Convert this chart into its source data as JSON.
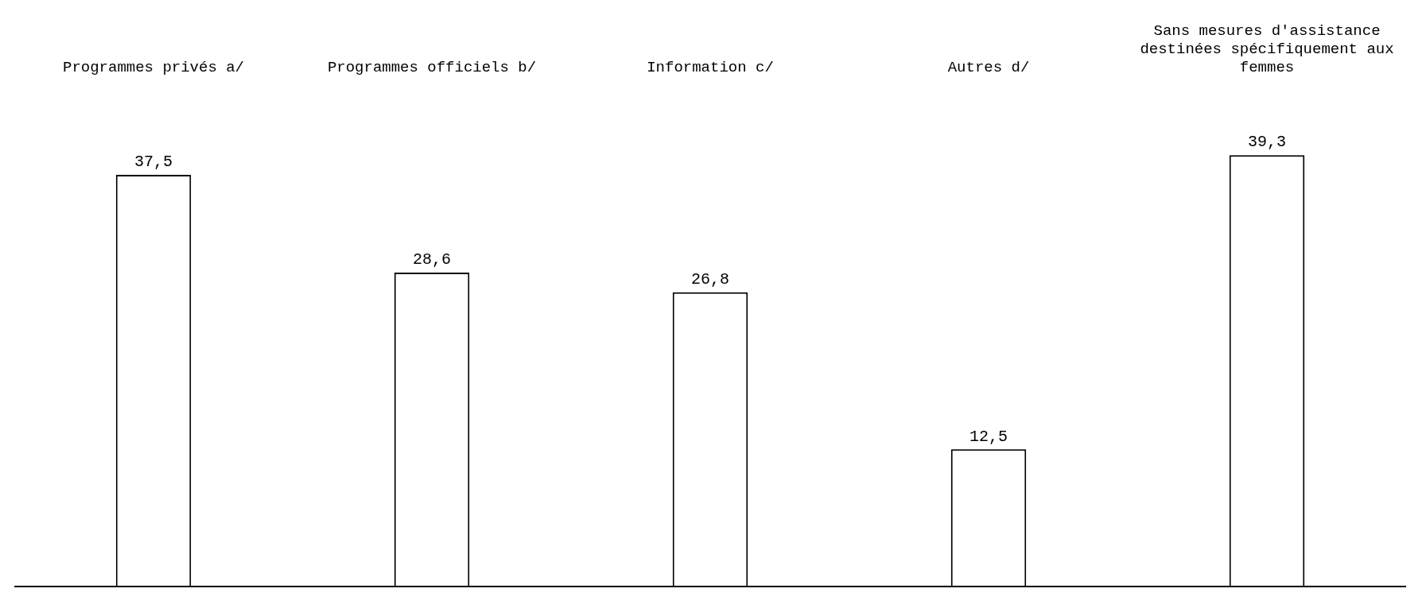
{
  "chart_data": {
    "type": "bar",
    "categories": [
      "Programmes privés a/",
      "Programmes officiels b/",
      "Information c/",
      "Autres d/",
      "Sans mesures d'assistance destinées spécifiquement aux femmes"
    ],
    "values": [
      37.5,
      28.6,
      26.8,
      12.5,
      39.3
    ],
    "color": "#ffffff",
    "value_labels": [
      "37,5",
      "28,6",
      "26,8",
      "12,5",
      "39,3"
    ],
    "grid": false,
    "legend": false
  }
}
